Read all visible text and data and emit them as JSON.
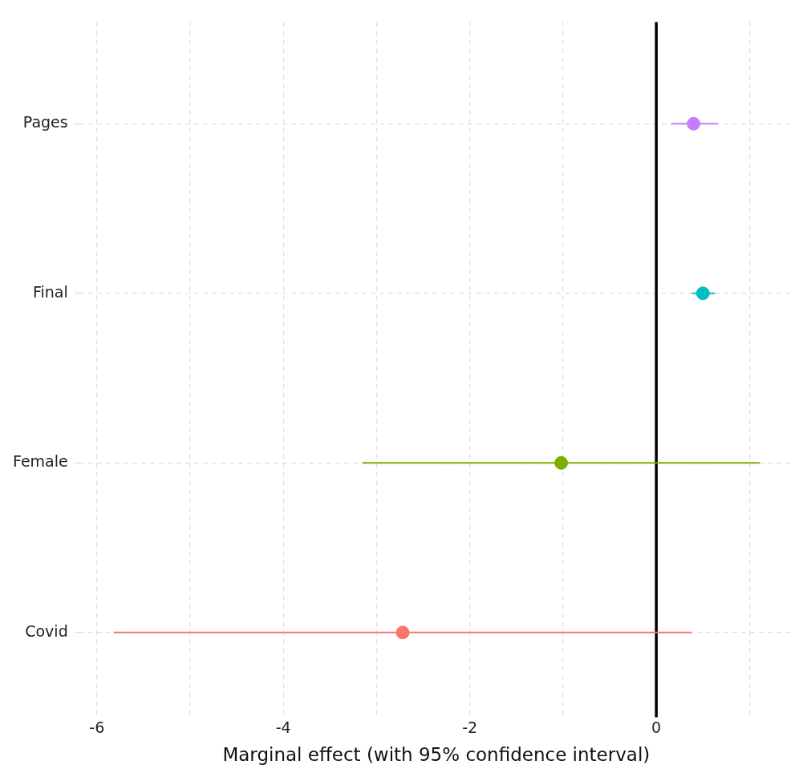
{
  "chart_data": {
    "type": "scatter",
    "orientation": "horizontal",
    "xlabel": "Marginal effect (with 95% confidence interval)",
    "categories": [
      "Pages",
      "Final",
      "Female",
      "Covid"
    ],
    "values": [
      0.4,
      0.5,
      -1.02,
      -2.72
    ],
    "errors": [
      [
        0.16,
        0.66
      ],
      [
        0.38,
        0.63
      ],
      [
        -3.15,
        1.11
      ],
      [
        -5.82,
        0.38
      ]
    ],
    "colors": [
      "#c77cff",
      "#00bfc4",
      "#7cae00",
      "#f8766d"
    ],
    "xlim": [
      -6.19,
      1.47
    ],
    "xticks": [
      -6,
      {
        "value": -5,
        "label": null
      },
      -4,
      {
        "value": -3,
        "label": null
      },
      -2,
      {
        "value": -1,
        "label": null
      },
      0,
      {
        "value": 1,
        "label": null
      }
    ],
    "ref_lines": [
      {
        "axis": "x",
        "value": 0,
        "color": "#000000"
      }
    ],
    "grid": true,
    "legend": false,
    "marker": "circle",
    "line_style": "dashed"
  }
}
